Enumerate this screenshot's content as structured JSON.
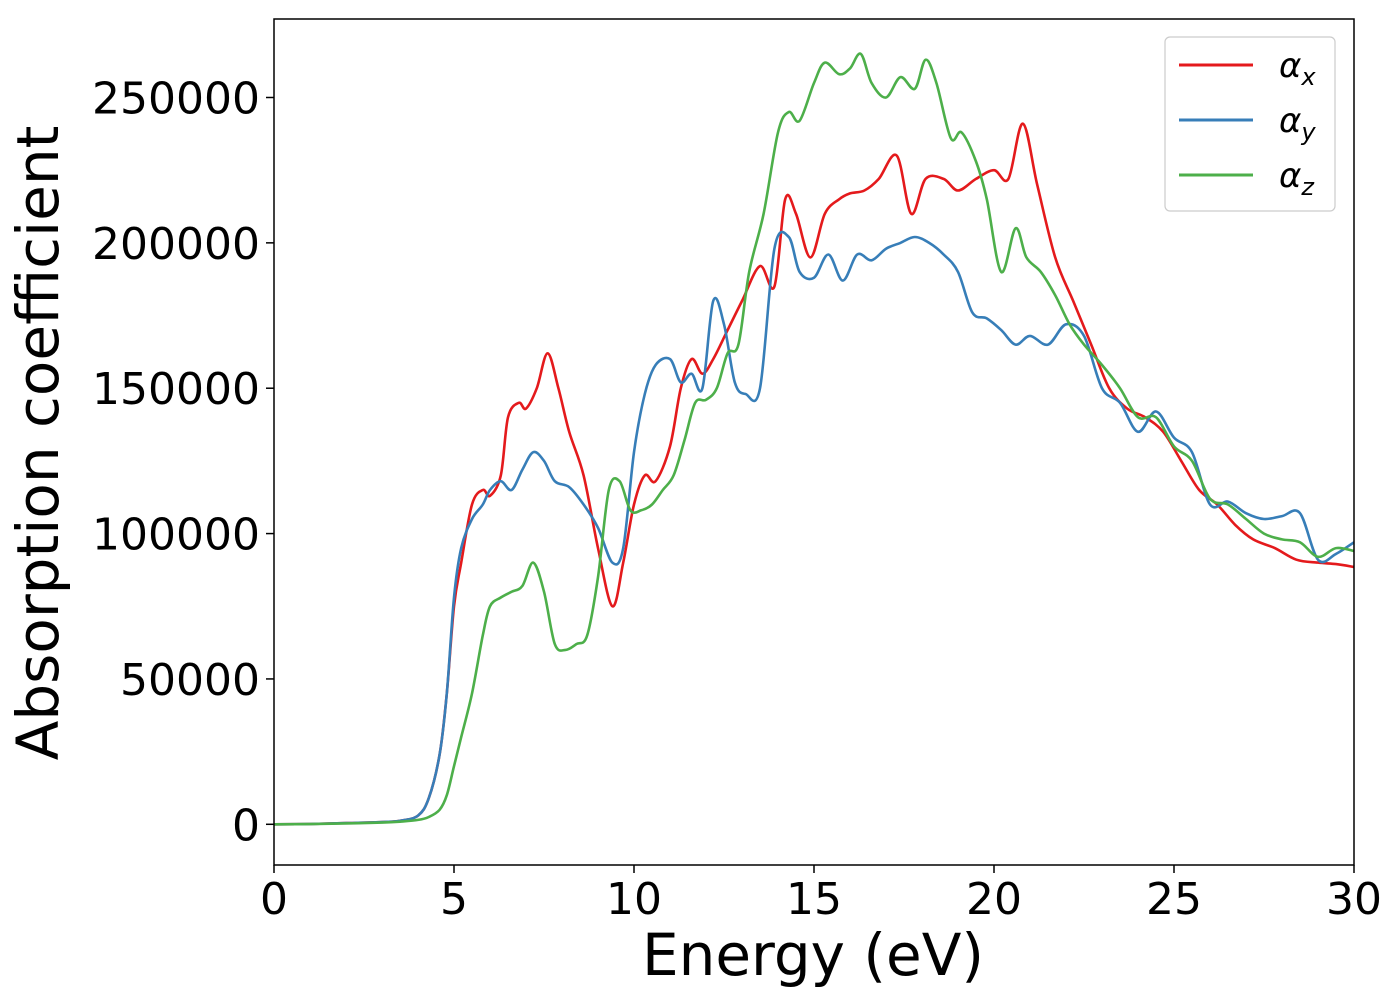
{
  "chart_data": {
    "type": "line",
    "title": "",
    "xlabel": "Energy (eV)",
    "ylabel": "Absorption coefficient",
    "xlim": [
      0,
      30
    ],
    "ylim": [
      -14000,
      277000
    ],
    "xticks": [
      0,
      5,
      10,
      15,
      20,
      25,
      30
    ],
    "xtick_labels": [
      "0",
      "5",
      "10",
      "15",
      "20",
      "25",
      "30"
    ],
    "yticks": [
      0,
      50000,
      100000,
      150000,
      200000,
      250000
    ],
    "ytick_labels": [
      "0",
      "50000",
      "100000",
      "150000",
      "200000",
      "250000"
    ],
    "grid": false,
    "legend_position": "top-right",
    "series": [
      {
        "name": "α_x",
        "legend_base": "α",
        "legend_sub": "x",
        "color": "#e41a1c",
        "x": [
          0,
          1,
          2,
          3,
          3.5,
          4,
          4.3,
          4.6,
          4.8,
          5,
          5.2,
          5.5,
          5.8,
          6,
          6.3,
          6.5,
          6.8,
          7,
          7.3,
          7.6,
          7.9,
          8.2,
          8.6,
          9,
          9.4,
          9.7,
          10,
          10.3,
          10.6,
          11,
          11.3,
          11.6,
          11.9,
          12.2,
          12.6,
          13,
          13.5,
          13.9,
          14.2,
          14.5,
          14.9,
          15.3,
          15.7,
          16,
          16.4,
          16.8,
          17.3,
          17.7,
          18.1,
          18.6,
          19,
          19.5,
          20,
          20.4,
          20.8,
          21.2,
          21.7,
          22.2,
          22.7,
          23.2,
          23.7,
          24.2,
          24.7,
          25.2,
          25.7,
          26.2,
          26.7,
          27.2,
          27.8,
          28.4,
          29,
          29.5,
          30
        ],
        "y": [
          0,
          100,
          400,
          800,
          1200,
          3000,
          9000,
          24000,
          45000,
          75000,
          90000,
          110000,
          115000,
          113000,
          120000,
          140000,
          145000,
          143000,
          150000,
          162000,
          150000,
          135000,
          120000,
          95000,
          75000,
          90000,
          110000,
          120000,
          118000,
          130000,
          150000,
          160000,
          155000,
          160000,
          170000,
          180000,
          192000,
          185000,
          215000,
          210000,
          195000,
          210000,
          215000,
          217000,
          218000,
          222000,
          230000,
          210000,
          222000,
          222000,
          218000,
          222000,
          225000,
          222000,
          241000,
          220000,
          195000,
          180000,
          165000,
          150000,
          143000,
          140000,
          135000,
          125000,
          115000,
          110000,
          103000,
          98000,
          95000,
          91000,
          90000,
          89500,
          88500
        ]
      },
      {
        "name": "α_y",
        "legend_base": "α",
        "legend_sub": "y",
        "color": "#377eb8",
        "x": [
          0,
          1,
          2,
          3,
          3.5,
          4,
          4.3,
          4.6,
          4.8,
          5,
          5.2,
          5.5,
          5.8,
          6,
          6.3,
          6.6,
          6.9,
          7.2,
          7.5,
          7.8,
          8.2,
          8.6,
          9,
          9.4,
          9.7,
          10,
          10.3,
          10.6,
          11,
          11.3,
          11.6,
          11.9,
          12.2,
          12.5,
          12.8,
          13.1,
          13.5,
          13.9,
          14.3,
          14.6,
          15,
          15.4,
          15.8,
          16.2,
          16.6,
          17,
          17.4,
          17.8,
          18.2,
          18.6,
          19,
          19.4,
          19.8,
          20.2,
          20.6,
          21,
          21.5,
          22,
          22.5,
          23,
          23.5,
          24,
          24.5,
          25,
          25.5,
          26,
          26.5,
          27,
          27.5,
          28,
          28.5,
          29,
          29.5,
          30
        ],
        "y": [
          0,
          100,
          400,
          800,
          1200,
          3000,
          9000,
          24000,
          45000,
          78000,
          95000,
          105000,
          110000,
          115000,
          118000,
          115000,
          122000,
          128000,
          125000,
          118000,
          116000,
          110000,
          102000,
          90000,
          95000,
          128000,
          148000,
          158000,
          160000,
          152000,
          155000,
          150000,
          180000,
          172000,
          152000,
          148000,
          150000,
          198000,
          202000,
          190000,
          188000,
          196000,
          187000,
          196000,
          194000,
          198000,
          200000,
          202000,
          200000,
          196000,
          190000,
          176000,
          174000,
          170000,
          165000,
          168000,
          165000,
          172000,
          168000,
          150000,
          145000,
          135000,
          142000,
          133000,
          128000,
          110000,
          111000,
          107000,
          105000,
          106000,
          107000,
          91000,
          93000,
          97000
        ]
      },
      {
        "name": "α_z",
        "legend_base": "α",
        "legend_sub": "z",
        "color": "#4daf4a",
        "x": [
          0,
          1,
          2,
          3,
          3.5,
          4,
          4.3,
          4.6,
          4.8,
          5,
          5.2,
          5.5,
          5.8,
          6,
          6.3,
          6.6,
          6.9,
          7.2,
          7.5,
          7.8,
          8.1,
          8.4,
          8.7,
          9,
          9.3,
          9.6,
          9.9,
          10.2,
          10.5,
          10.8,
          11.1,
          11.4,
          11.7,
          12,
          12.3,
          12.6,
          12.9,
          13.2,
          13.6,
          14,
          14.3,
          14.6,
          15,
          15.3,
          15.7,
          16,
          16.3,
          16.6,
          17,
          17.4,
          17.8,
          18.1,
          18.4,
          18.8,
          19.1,
          19.5,
          19.8,
          20.2,
          20.6,
          20.9,
          21.3,
          21.7,
          22.1,
          22.5,
          23,
          23.5,
          24,
          24.5,
          25,
          25.5,
          26,
          26.5,
          27,
          27.5,
          28,
          28.5,
          29,
          29.5,
          30
        ],
        "y": [
          0,
          80,
          300,
          600,
          900,
          1500,
          2500,
          5000,
          10000,
          20000,
          30000,
          45000,
          65000,
          75000,
          78000,
          80000,
          82000,
          90000,
          80000,
          62000,
          60000,
          62000,
          65000,
          85000,
          115000,
          118000,
          108000,
          108000,
          110000,
          115000,
          120000,
          132000,
          145000,
          146000,
          150000,
          162000,
          165000,
          190000,
          210000,
          238000,
          245000,
          242000,
          255000,
          262000,
          258000,
          260000,
          265000,
          255000,
          250000,
          257000,
          253000,
          263000,
          255000,
          236000,
          238000,
          228000,
          215000,
          190000,
          205000,
          195000,
          190000,
          182000,
          172000,
          165000,
          158000,
          150000,
          140000,
          140000,
          130000,
          125000,
          112000,
          110000,
          105000,
          100000,
          98000,
          97000,
          92000,
          95000,
          94000
        ]
      }
    ]
  }
}
